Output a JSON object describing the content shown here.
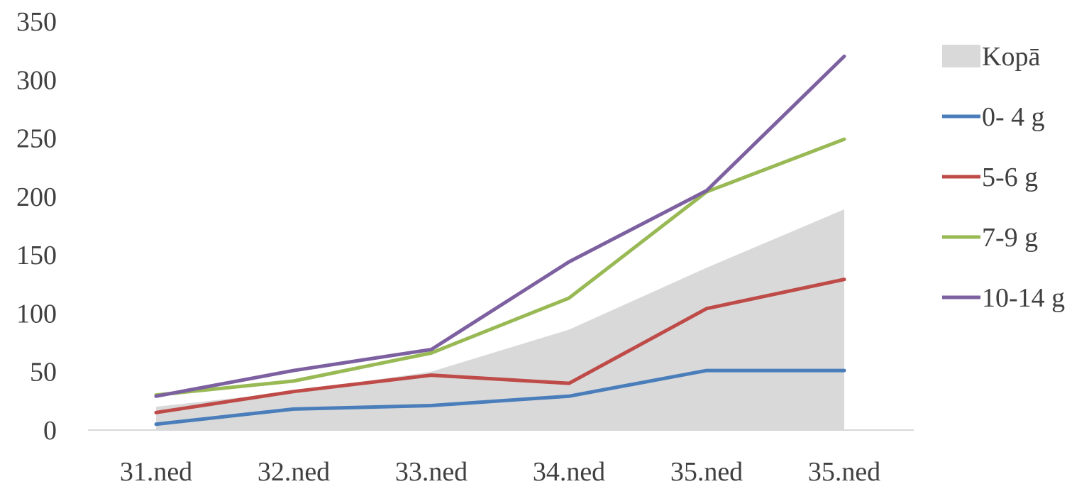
{
  "chart_data": {
    "type": "line",
    "categories": [
      "31.ned",
      "32.ned",
      "33.ned",
      "34.ned",
      "35.ned",
      "35.ned"
    ],
    "ylim": [
      0,
      350
    ],
    "yticks": [
      0,
      50,
      100,
      150,
      200,
      250,
      300,
      350
    ],
    "grid": false,
    "legend_position": "right",
    "series": [
      {
        "name": "Kopā",
        "kind": "area",
        "color": "#d9d9d9",
        "values": [
          20,
          33,
          50,
          86,
          139,
          189
        ]
      },
      {
        "name": "0- 4 g",
        "kind": "line",
        "color": "#4a7ebb",
        "values": [
          5,
          18,
          21,
          29,
          51,
          51
        ]
      },
      {
        "name": "5-6 g",
        "kind": "line",
        "color": "#be4b48",
        "values": [
          15,
          33,
          47,
          40,
          104,
          129
        ]
      },
      {
        "name": "7-9 g",
        "kind": "line",
        "color": "#98b954",
        "values": [
          30,
          42,
          66,
          113,
          204,
          249
        ]
      },
      {
        "name": "10-14 g",
        "kind": "line",
        "color": "#7d60a0",
        "values": [
          29,
          51,
          69,
          144,
          205,
          320
        ]
      }
    ]
  }
}
